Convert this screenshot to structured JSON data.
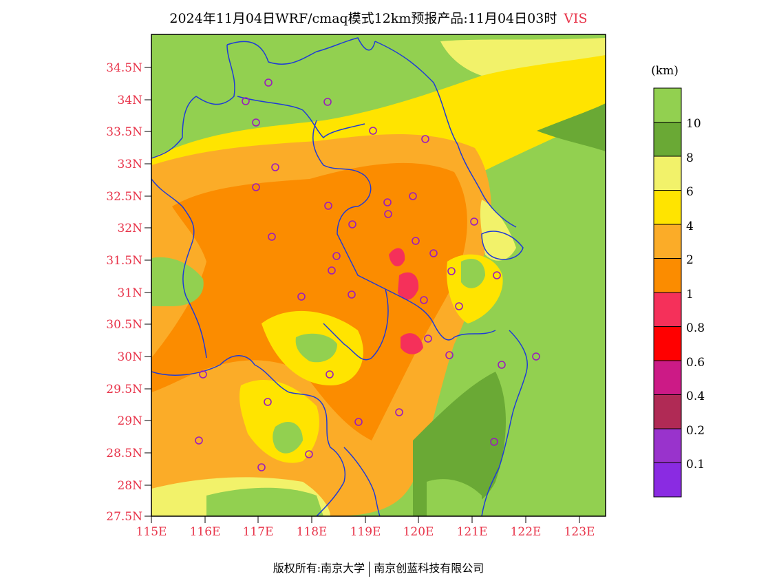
{
  "header": {
    "title": "2024年11月04日WRF/cmaq模式12km预报产品:11月04日03时",
    "variable": "VIS"
  },
  "axes": {
    "lat_labels": [
      "34.5N",
      "34N",
      "33.5N",
      "33N",
      "32.5N",
      "32N",
      "31.5N",
      "31N",
      "30.5N",
      "30N",
      "29.5N",
      "29N",
      "28.5N",
      "28N",
      "27.5N"
    ],
    "lon_labels": [
      "115E",
      "116E",
      "117E",
      "118E",
      "119E",
      "120E",
      "121E",
      "122E",
      "123E"
    ]
  },
  "colorbar": {
    "unit": "(km)",
    "levels": [
      "10",
      "8",
      "6",
      "4",
      "2",
      "1",
      "0.8",
      "0.6",
      "0.4",
      "0.2",
      "0.1"
    ],
    "colors": [
      "#92d050",
      "#6aa935",
      "#f2f26a",
      "#ffe400",
      "#fbac28",
      "#fb8c00",
      "#f5305a",
      "#ff0000",
      "#cc1a86",
      "#b02a55",
      "#9933cc",
      "#8a2be2"
    ]
  },
  "footer": {
    "left": "版权所有:南京大学",
    "right": "南京创蓝科技有限公司"
  }
}
